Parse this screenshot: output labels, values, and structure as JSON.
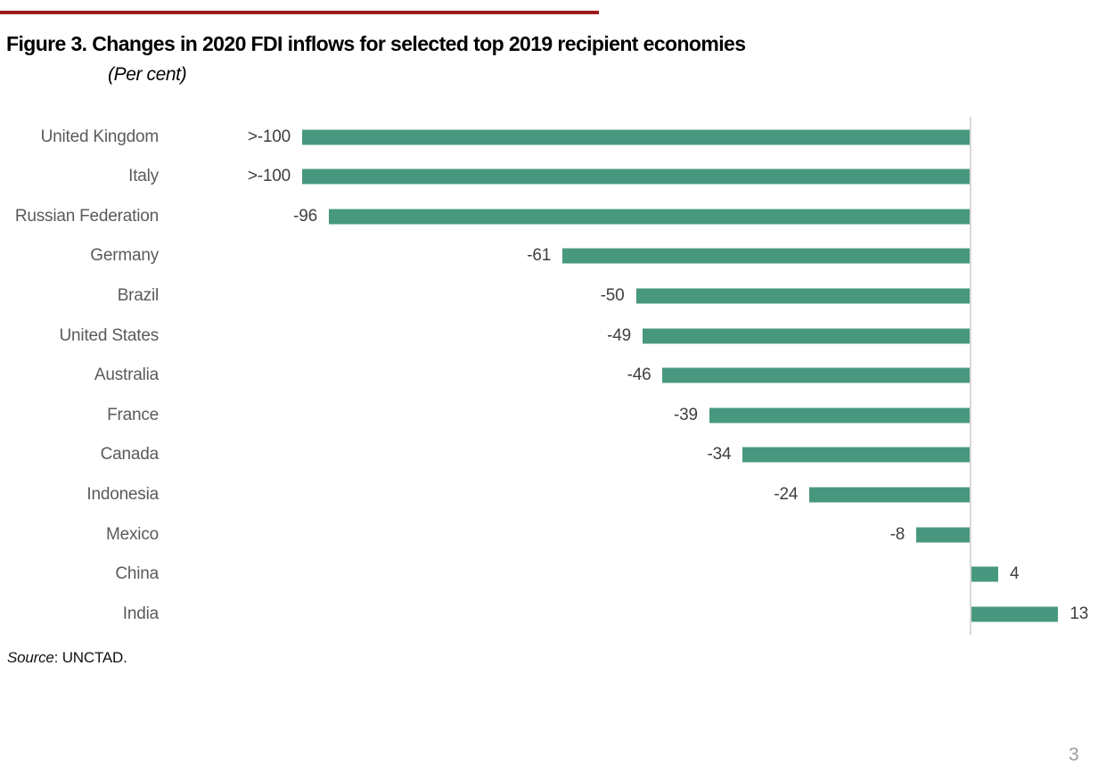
{
  "page": {
    "title": "Figure 3. Changes in 2020 FDI inflows for selected top 2019 recipient economies",
    "subtitle": "(Per cent)",
    "source_label": "Source",
    "source_rest": ": UNCTAD.",
    "page_number": "3"
  },
  "colors": {
    "bar": "#48987f",
    "top_rule": "#9b1b1e",
    "axis_line": "#d8d8d8",
    "category_label": "#5a5a5a",
    "value_label": "#3f3f3f",
    "page_number": "#9c9c9c"
  },
  "chart_data": {
    "type": "bar",
    "orientation": "horizontal",
    "title": "Figure 3. Changes in 2020 FDI inflows for selected top 2019 recipient economies",
    "subtitle": "(Per cent)",
    "xlabel": "",
    "ylabel": "",
    "xlim": [
      -105,
      20
    ],
    "grid": false,
    "legend": false,
    "baseline_at": 0,
    "categories": [
      "United Kingdom",
      "Italy",
      "Russian Federation",
      "Germany",
      "Brazil",
      "United States",
      "Australia",
      "France",
      "Canada",
      "Indonesia",
      "Mexico",
      "China",
      "India"
    ],
    "values": [
      -100,
      -100,
      -96,
      -61,
      -50,
      -49,
      -46,
      -39,
      -34,
      -24,
      -8,
      4,
      13
    ],
    "value_labels": [
      ">-100",
      ">-100",
      "-96",
      "-61",
      "-50",
      "-49",
      "-46",
      "-39",
      "-34",
      "-24",
      "-8",
      "4",
      "13"
    ]
  }
}
